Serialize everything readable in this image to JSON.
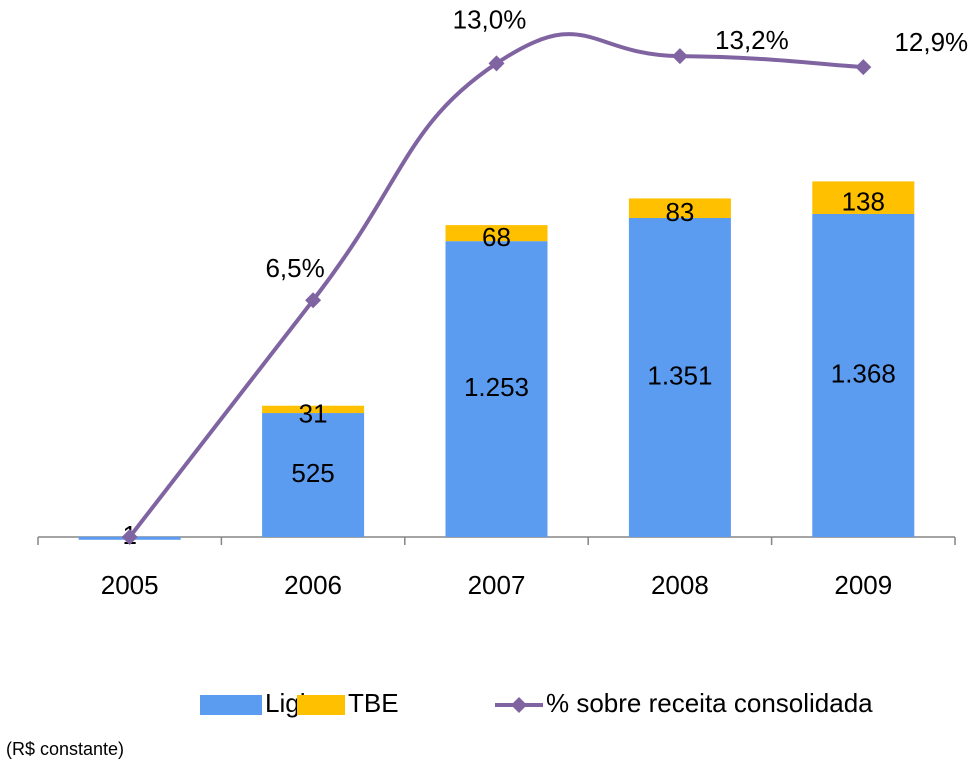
{
  "chart_data": {
    "type": "bar_line",
    "categories": [
      "2005",
      "2006",
      "2007",
      "2008",
      "2009"
    ],
    "series": [
      {
        "name": "Light",
        "type": "bar",
        "color": "#5b9bf0",
        "values": [
          1,
          525,
          1253,
          1351,
          1368
        ],
        "value_labels": [
          "1",
          "525",
          "1.253",
          "1.351",
          "1.368"
        ]
      },
      {
        "name": "TBE",
        "type": "bar",
        "color": "#ffc000",
        "values": [
          null,
          31,
          68,
          83,
          138
        ]
      },
      {
        "name": "% sobre receita consolidada",
        "type": "line",
        "axis": "y2",
        "color": "#8064a2",
        "values": [
          0,
          6.5,
          13.0,
          13.2,
          12.9
        ],
        "value_labels": [
          null,
          "6,5%",
          "13,0%",
          "13,2%",
          "12,9%"
        ]
      }
    ],
    "ylim": [
      0,
      2160
    ],
    "y2lim": [
      0,
      14
    ],
    "stacked": true,
    "grid": false,
    "note": "(R$ constante)"
  }
}
